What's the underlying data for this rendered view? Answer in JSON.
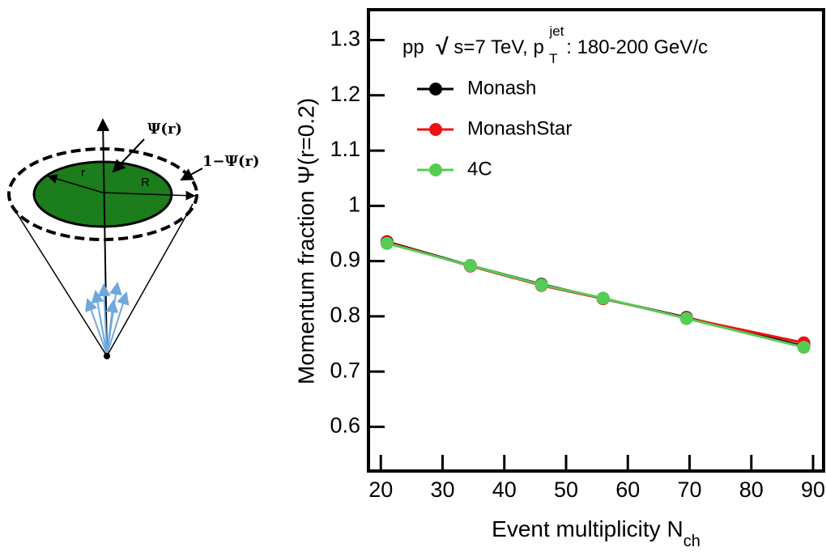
{
  "chart_data": {
    "type": "line",
    "title_parts": [
      "pp",
      "√",
      "s=7 TeV, p",
      "jet",
      "T",
      ": 180-200 GeV/c"
    ],
    "x_label": "Event multiplicity N",
    "x_label_sub": "ch",
    "y_label": "Momentum fraction Ψ(r=0.2)",
    "x": [
      21,
      34.5,
      46,
      56,
      69.5,
      88.5
    ],
    "series": [
      {
        "name": "Monash",
        "color": "#000000",
        "values": [
          0.935,
          0.892,
          0.858,
          0.832,
          0.798,
          0.746
        ]
      },
      {
        "name": "MonashStar",
        "color": "#ee1111",
        "values": [
          0.934,
          0.891,
          0.856,
          0.832,
          0.797,
          0.752
        ]
      },
      {
        "name": "4C",
        "color": "#55cc55",
        "values": [
          0.932,
          0.892,
          0.857,
          0.833,
          0.796,
          0.744
        ]
      }
    ],
    "xlim": [
      18,
      91.7
    ],
    "ylim": [
      0.52,
      1.355
    ],
    "xticks": [
      20,
      30,
      40,
      50,
      60,
      70,
      80,
      90
    ],
    "yticks": [
      0.6,
      0.7,
      0.8,
      0.9,
      1,
      1.1,
      1.2,
      1.3
    ],
    "legend": "upper-left"
  },
  "diagram": {
    "psi": "Ψ(r)",
    "one_minus_psi": "1−Ψ(r)",
    "r": "r",
    "R": "R"
  }
}
